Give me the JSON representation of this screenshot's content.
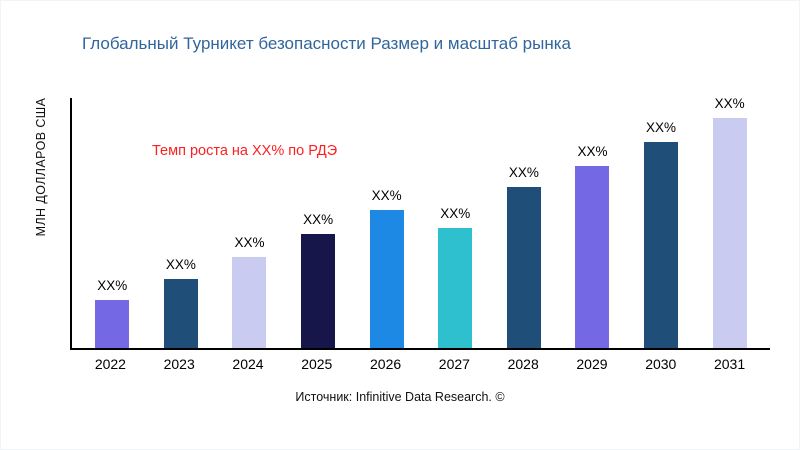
{
  "header": {
    "title": "Глобальный Турникет безопасности Размер и масштаб рынка"
  },
  "footer": {
    "source": "Источник: Infinitive Data Research. ©"
  },
  "colors": {
    "title": "#31659c",
    "annotation": "#ff1f1f",
    "axis": "#000000"
  },
  "chart_data": {
    "type": "bar",
    "title": "Глобальный Турникет безопасности Размер и масштаб рынка",
    "xlabel": "",
    "ylabel": "МЛН ДОЛЛАРОВ США",
    "annotation": "Темп роста на XX% по РДЭ",
    "source": "Источник: Infinitive Data Research. ©",
    "categories": [
      "2022",
      "2023",
      "2024",
      "2025",
      "2026",
      "2027",
      "2028",
      "2029",
      "2030",
      "2031"
    ],
    "values": [
      48,
      69,
      91,
      114,
      138,
      120,
      161,
      182,
      206,
      230
    ],
    "bar_labels": [
      "XX%",
      "XX%",
      "XX%",
      "XX%",
      "XX%",
      "XX%",
      "XX%",
      "XX%",
      "XX%",
      "XX%"
    ],
    "bar_colors": [
      "#7468e4",
      "#1f4e79",
      "#c9ccf0",
      "#16164a",
      "#1e88e5",
      "#2ec0ce",
      "#1f4e79",
      "#7468e4",
      "#1f4e79",
      "#c9ccf0"
    ],
    "ylim": [
      0,
      252
    ],
    "grid": false,
    "legend": false
  }
}
